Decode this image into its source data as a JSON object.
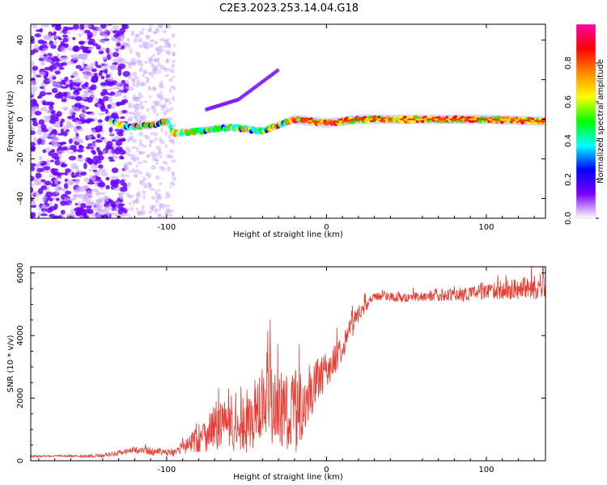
{
  "title": "C2E3.2023.253.14.04.G18",
  "colors": {
    "snr_line": "#e8392f",
    "spectrum_scatter": "#6a00ff",
    "axis": "#000000"
  },
  "chart_data": [
    {
      "type": "heatmap",
      "name": "spectrogram",
      "xlabel": "Height of straight line (km)",
      "ylabel": "Frequency (Hz)",
      "xlim": [
        -185,
        137
      ],
      "ylim": [
        -50,
        48
      ],
      "xticks": [
        -100,
        0,
        100
      ],
      "xtick_labels": [
        "-100",
        "0",
        "100"
      ],
      "yticks": [
        -40,
        -20,
        0,
        20,
        40
      ],
      "ytick_labels": [
        "-40",
        "-20",
        "0",
        "20",
        "40"
      ],
      "ridge": [
        {
          "x": -135,
          "y": -1
        },
        {
          "x": -125,
          "y": -4
        },
        {
          "x": -110,
          "y": -3
        },
        {
          "x": -100,
          "y": -1
        },
        {
          "x": -95,
          "y": -7
        },
        {
          "x": -80,
          "y": -6
        },
        {
          "x": -60,
          "y": -4
        },
        {
          "x": -40,
          "y": -6
        },
        {
          "x": -30,
          "y": -3
        },
        {
          "x": -20,
          "y": 0
        },
        {
          "x": -10,
          "y": -1
        },
        {
          "x": 0,
          "y": -2
        },
        {
          "x": 20,
          "y": 0
        },
        {
          "x": 60,
          "y": 0
        },
        {
          "x": 100,
          "y": 0
        },
        {
          "x": 137,
          "y": -1
        }
      ],
      "branch": [
        {
          "x": -75,
          "y": 5
        },
        {
          "x": -55,
          "y": 10
        },
        {
          "x": -45,
          "y": 16
        },
        {
          "x": -35,
          "y": 22
        },
        {
          "x": -30,
          "y": 25
        }
      ],
      "colorbar": {
        "label": "Normalized spectral amplitude",
        "range": [
          0,
          1
        ],
        "ticks": [
          0.0,
          0.2,
          0.4,
          0.6,
          0.8
        ],
        "tick_labels": [
          "0.0",
          "0.2",
          "0.4",
          "0.6",
          "0.8"
        ],
        "colors": [
          "#ffffff",
          "#7b00ff",
          "#0000ff",
          "#00ffff",
          "#00ff00",
          "#ffff00",
          "#ff8800",
          "#ff0000",
          "#ff00aa"
        ]
      }
    },
    {
      "type": "line",
      "name": "snr",
      "xlabel": "Height of straight line (km)",
      "ylabel": "SNR (10 * v/v)",
      "xlim": [
        -185,
        137
      ],
      "ylim": [
        0,
        6200
      ],
      "xticks": [
        -100,
        0,
        100
      ],
      "xtick_labels": [
        "-100",
        "0",
        "100"
      ],
      "yticks": [
        0,
        2000,
        4000,
        6000
      ],
      "ytick_labels": [
        "0",
        "2000",
        "4000",
        "6000"
      ],
      "series": [
        {
          "name": "SNR",
          "x": [
            -185,
            -170,
            -150,
            -140,
            -130,
            -120,
            -110,
            -100,
            -95,
            -90,
            -85,
            -80,
            -75,
            -70,
            -65,
            -60,
            -55,
            -50,
            -45,
            -40,
            -35,
            -30,
            -25,
            -20,
            -15,
            -10,
            -5,
            0,
            5,
            10,
            15,
            20,
            25,
            30,
            35,
            40,
            50,
            60,
            70,
            80,
            90,
            100,
            110,
            120,
            130,
            137
          ],
          "values": [
            140,
            150,
            140,
            170,
            250,
            350,
            300,
            250,
            280,
            400,
            600,
            700,
            900,
            1100,
            1200,
            1000,
            900,
            1100,
            1500,
            1700,
            1800,
            1600,
            1700,
            1500,
            1800,
            2200,
            2600,
            2900,
            3200,
            3700,
            4200,
            4700,
            5000,
            5200,
            5300,
            5250,
            5200,
            5250,
            5300,
            5300,
            5350,
            5400,
            5450,
            5500,
            5550,
            5600
          ],
          "noise": [
            30,
            30,
            40,
            60,
            80,
            100,
            120,
            120,
            150,
            250,
            350,
            500,
            600,
            800,
            900,
            700,
            700,
            900,
            1100,
            1200,
            1300,
            1300,
            1400,
            1400,
            1100,
            900,
            700,
            550,
            500,
            450,
            400,
            300,
            200,
            150,
            150,
            150,
            150,
            150,
            200,
            200,
            250,
            250,
            300,
            350,
            400,
            450
          ]
        }
      ]
    }
  ]
}
